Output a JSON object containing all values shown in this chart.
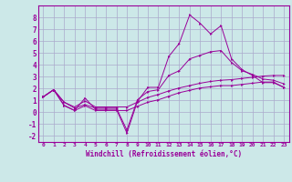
{
  "xlabel": "Windchill (Refroidissement éolien,°C)",
  "bg_color": "#cce8e8",
  "grid_color": "#aaaacc",
  "line_color": "#990099",
  "xlim": [
    -0.5,
    23.5
  ],
  "ylim": [
    -2.5,
    9.0
  ],
  "yticks": [
    -2,
    -1,
    0,
    1,
    2,
    3,
    4,
    5,
    6,
    7,
    8
  ],
  "xticks": [
    0,
    1,
    2,
    3,
    4,
    5,
    6,
    7,
    8,
    9,
    10,
    11,
    12,
    13,
    14,
    15,
    16,
    17,
    18,
    19,
    20,
    21,
    22,
    23
  ],
  "line1_x": [
    0,
    1,
    2,
    3,
    4,
    5,
    6,
    7,
    8,
    9,
    10,
    11,
    12,
    13,
    14,
    15,
    16,
    17,
    18,
    19,
    20,
    21,
    22,
    23
  ],
  "line1_y": [
    1.3,
    1.9,
    0.6,
    0.15,
    1.2,
    0.25,
    0.25,
    0.25,
    -1.75,
    0.9,
    2.1,
    2.1,
    4.7,
    5.8,
    8.2,
    7.5,
    6.6,
    7.3,
    4.5,
    3.6,
    3.1,
    2.5,
    2.5,
    2.1
  ],
  "line2_x": [
    0,
    1,
    2,
    3,
    4,
    5,
    6,
    7,
    8,
    9,
    10,
    11,
    12,
    13,
    14,
    15,
    16,
    17,
    18,
    19,
    20,
    21,
    22,
    23
  ],
  "line2_y": [
    1.3,
    1.9,
    0.85,
    0.45,
    0.95,
    0.45,
    0.45,
    0.45,
    0.45,
    0.85,
    1.25,
    1.5,
    1.8,
    2.05,
    2.25,
    2.45,
    2.6,
    2.7,
    2.75,
    2.85,
    2.95,
    3.05,
    3.1,
    3.1
  ],
  "line3_x": [
    0,
    1,
    2,
    3,
    4,
    5,
    6,
    7,
    8,
    9,
    10,
    11,
    12,
    13,
    14,
    15,
    16,
    17,
    18,
    19,
    20,
    21,
    22,
    23
  ],
  "line3_y": [
    1.3,
    1.9,
    0.85,
    0.35,
    0.65,
    0.35,
    0.35,
    0.35,
    -1.5,
    1.05,
    1.75,
    1.9,
    3.1,
    3.5,
    4.5,
    4.8,
    5.1,
    5.2,
    4.2,
    3.5,
    3.2,
    2.8,
    2.7,
    2.4
  ],
  "line4_x": [
    0,
    1,
    2,
    3,
    4,
    5,
    6,
    7,
    8,
    9,
    10,
    11,
    12,
    13,
    14,
    15,
    16,
    17,
    18,
    19,
    20,
    21,
    22,
    23
  ],
  "line4_y": [
    1.3,
    1.9,
    0.55,
    0.15,
    0.55,
    0.15,
    0.15,
    0.15,
    0.15,
    0.5,
    0.85,
    1.05,
    1.35,
    1.65,
    1.85,
    2.05,
    2.15,
    2.25,
    2.25,
    2.35,
    2.45,
    2.55,
    2.55,
    2.1
  ]
}
